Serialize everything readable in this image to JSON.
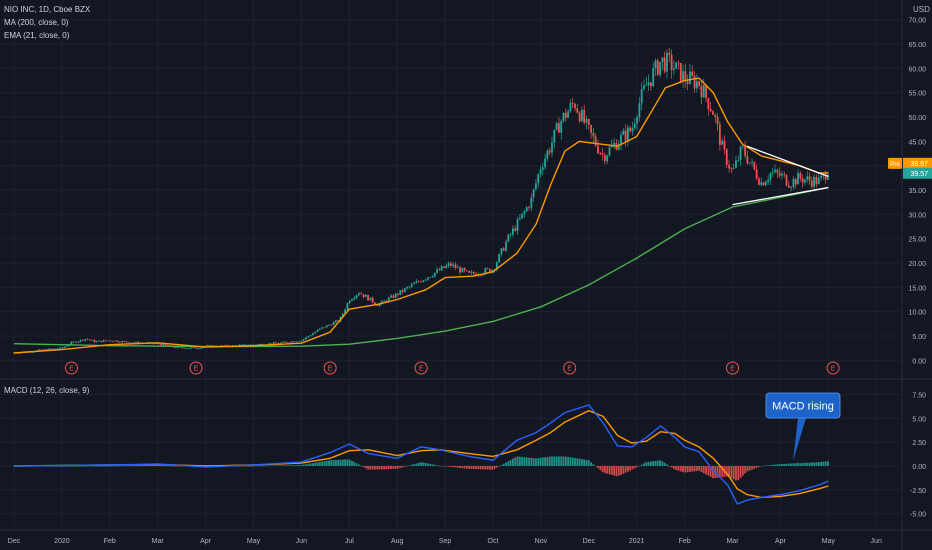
{
  "header": {
    "symbol": "NIO INC, 1D, Cboe BZX",
    "ma": "MA (200, close, 0)",
    "ema": "EMA (21, close, 0)",
    "macd": "MACD (12, 26, close, 9)",
    "currency": "USD"
  },
  "colors": {
    "background": "#131722",
    "grid": "#1e2230",
    "up": "#26a69a",
    "down": "#ef5350",
    "ema": "#ff9800",
    "ma200": "#4caf50",
    "macd": "#2962ff",
    "signal": "#ff9800",
    "trendline": "#ffffff",
    "callout": "#1e63c9"
  },
  "price_badges": {
    "pre_label": "Pre",
    "pre_value": "39.97",
    "last_value": "39.57"
  },
  "earnings_marker": "E",
  "annotation": "MACD rising",
  "chart_data": [
    {
      "type": "candlestick",
      "title": "NIO INC, 1D, Cboe BZX",
      "ylabel": "USD",
      "ylim": [
        -2,
        72
      ],
      "yticks": [
        "0.00",
        "5.00",
        "10.00",
        "15.00",
        "20.00",
        "25.00",
        "30.00",
        "35.00",
        "40.00",
        "45.00",
        "50.00",
        "55.00",
        "60.00",
        "65.00",
        "70.00"
      ],
      "x_categories": [
        "Dec",
        "2020",
        "Feb",
        "Mar",
        "Apr",
        "May",
        "Jun",
        "Jul",
        "Aug",
        "Sep",
        "Oct",
        "Nov",
        "Dec",
        "2021",
        "Feb",
        "Mar",
        "Apr",
        "May",
        "Jun"
      ],
      "x_ticks_month_index": [
        0,
        1,
        2,
        3,
        4,
        5,
        6,
        7,
        8,
        9,
        10,
        11,
        12,
        13,
        14,
        15,
        16,
        17,
        18
      ],
      "close_by_month_index": [
        [
          0,
          1.6
        ],
        [
          0.5,
          2.0
        ],
        [
          1,
          2.5
        ],
        [
          1.2,
          3.6
        ],
        [
          1.5,
          4.4
        ],
        [
          1.7,
          3.8
        ],
        [
          2,
          4.1
        ],
        [
          2.4,
          3.7
        ],
        [
          3,
          3.4
        ],
        [
          3.4,
          2.6
        ],
        [
          3.8,
          2.5
        ],
        [
          4,
          2.9
        ],
        [
          4.5,
          2.9
        ],
        [
          5,
          3.2
        ],
        [
          5.5,
          3.5
        ],
        [
          6,
          4.1
        ],
        [
          6.4,
          6.5
        ],
        [
          6.8,
          8.3
        ],
        [
          7,
          12.5
        ],
        [
          7.2,
          14.0
        ],
        [
          7.6,
          11.4
        ],
        [
          8,
          13.6
        ],
        [
          8.5,
          16.5
        ],
        [
          8.9,
          18.6
        ],
        [
          9.1,
          19.7
        ],
        [
          9.5,
          17.6
        ],
        [
          10,
          18.7
        ],
        [
          10.3,
          24.8
        ],
        [
          10.6,
          29.5
        ],
        [
          10.8,
          33.0
        ],
        [
          11,
          40.0
        ],
        [
          11.2,
          44.0
        ],
        [
          11.4,
          49.0
        ],
        [
          11.7,
          53.0
        ],
        [
          12,
          47.0
        ],
        [
          12.3,
          42.0
        ],
        [
          12.6,
          45.0
        ],
        [
          12.9,
          47.5
        ],
        [
          13,
          51.5
        ],
        [
          13.2,
          56.5
        ],
        [
          13.5,
          61.5
        ],
        [
          13.7,
          61.0
        ],
        [
          14,
          58.0
        ],
        [
          14.3,
          57.0
        ],
        [
          14.6,
          51.0
        ],
        [
          14.8,
          43.0
        ],
        [
          15,
          38.5
        ],
        [
          15.2,
          43.5
        ],
        [
          15.4,
          40.0
        ],
        [
          15.6,
          36.5
        ],
        [
          15.8,
          38.5
        ],
        [
          16,
          38.0
        ],
        [
          16.2,
          36.5
        ],
        [
          16.4,
          37.5
        ],
        [
          16.6,
          37.0
        ],
        [
          16.8,
          36.8
        ],
        [
          16.9,
          37.5
        ],
        [
          17.0,
          39.57
        ]
      ],
      "ema21_by_month_index": [
        [
          0,
          1.5
        ],
        [
          1,
          2.2
        ],
        [
          2,
          3.2
        ],
        [
          3,
          3.6
        ],
        [
          4,
          2.7
        ],
        [
          5,
          3.0
        ],
        [
          6,
          3.5
        ],
        [
          6.6,
          5.8
        ],
        [
          7,
          10.5
        ],
        [
          7.6,
          11.5
        ],
        [
          8,
          12.5
        ],
        [
          8.6,
          14.5
        ],
        [
          9,
          17.0
        ],
        [
          9.6,
          17.3
        ],
        [
          10,
          18.2
        ],
        [
          10.5,
          22.0
        ],
        [
          10.9,
          28.0
        ],
        [
          11.2,
          36.0
        ],
        [
          11.5,
          43.0
        ],
        [
          11.8,
          45.0
        ],
        [
          12.2,
          44.5
        ],
        [
          12.6,
          44.0
        ],
        [
          13,
          46.0
        ],
        [
          13.3,
          51.0
        ],
        [
          13.6,
          56.0
        ],
        [
          14,
          57.5
        ],
        [
          14.3,
          58.0
        ],
        [
          14.6,
          55.0
        ],
        [
          14.9,
          49.0
        ],
        [
          15.2,
          44.5
        ],
        [
          15.6,
          42.0
        ],
        [
          16,
          41.0
        ],
        [
          16.4,
          40.0
        ],
        [
          16.8,
          38.5
        ],
        [
          17.0,
          38.5
        ]
      ],
      "ma200_by_month_index": [
        [
          0,
          3.4
        ],
        [
          2,
          3.0
        ],
        [
          4,
          2.8
        ],
        [
          6,
          2.9
        ],
        [
          7,
          3.3
        ],
        [
          8,
          4.5
        ],
        [
          9,
          6.0
        ],
        [
          10,
          8.0
        ],
        [
          11,
          11.0
        ],
        [
          12,
          15.5
        ],
        [
          13,
          21.0
        ],
        [
          14,
          27.0
        ],
        [
          15,
          31.5
        ],
        [
          16,
          33.5
        ],
        [
          17,
          35.5
        ]
      ],
      "trendlines": [
        {
          "from": [
            15,
            32.0
          ],
          "to": [
            17,
            35.5
          ]
        },
        {
          "from": [
            15.3,
            44.0
          ],
          "to": [
            17,
            37.8
          ]
        }
      ],
      "earnings_markers_month_index": [
        1.2,
        3.8,
        6.6,
        8.5,
        11.6,
        15.0,
        17.1
      ]
    },
    {
      "type": "line",
      "title": "MACD (12, 26, close, 9)",
      "ylim": [
        -6.2,
        8.5
      ],
      "yticks": [
        "-5.00",
        "-2.50",
        "0.00",
        "2.50",
        "5.00",
        "7.50"
      ],
      "series": [
        {
          "name": "MACD",
          "values_by_month_index": [
            [
              0,
              0
            ],
            [
              2,
              0.1
            ],
            [
              3,
              0.2
            ],
            [
              4,
              -0.1
            ],
            [
              5,
              0.1
            ],
            [
              6,
              0.4
            ],
            [
              6.6,
              1.4
            ],
            [
              7,
              2.3
            ],
            [
              7.4,
              1.3
            ],
            [
              8,
              0.8
            ],
            [
              8.5,
              2.0
            ],
            [
              8.9,
              1.7
            ],
            [
              9.5,
              1.0
            ],
            [
              10,
              0.6
            ],
            [
              10.5,
              2.7
            ],
            [
              10.9,
              3.5
            ],
            [
              11.2,
              4.5
            ],
            [
              11.5,
              5.6
            ],
            [
              12,
              6.4
            ],
            [
              12.3,
              4.5
            ],
            [
              12.6,
              2.1
            ],
            [
              12.9,
              2.0
            ],
            [
              13.2,
              3.0
            ],
            [
              13.5,
              4.2
            ],
            [
              13.8,
              3.0
            ],
            [
              14,
              2.0
            ],
            [
              14.3,
              1.5
            ],
            [
              14.6,
              -0.5
            ],
            [
              14.9,
              -2.0
            ],
            [
              15.1,
              -4.0
            ],
            [
              15.3,
              -3.6
            ],
            [
              15.6,
              -3.3
            ],
            [
              16,
              -3.0
            ],
            [
              16.4,
              -2.6
            ],
            [
              16.8,
              -2.0
            ],
            [
              17,
              -1.6
            ]
          ]
        },
        {
          "name": "Signal",
          "values_by_month_index": [
            [
              0,
              0
            ],
            [
              2,
              0.1
            ],
            [
              3,
              0.15
            ],
            [
              4,
              0
            ],
            [
              5,
              0.1
            ],
            [
              6,
              0.3
            ],
            [
              6.6,
              0.8
            ],
            [
              7,
              1.6
            ],
            [
              7.4,
              1.7
            ],
            [
              8,
              1.1
            ],
            [
              8.5,
              1.6
            ],
            [
              8.9,
              1.7
            ],
            [
              9.5,
              1.3
            ],
            [
              10,
              1.0
            ],
            [
              10.5,
              1.7
            ],
            [
              10.9,
              2.7
            ],
            [
              11.2,
              3.5
            ],
            [
              11.5,
              4.6
            ],
            [
              12,
              5.8
            ],
            [
              12.3,
              5.2
            ],
            [
              12.6,
              3.2
            ],
            [
              12.9,
              2.4
            ],
            [
              13.2,
              2.6
            ],
            [
              13.5,
              3.6
            ],
            [
              13.8,
              3.4
            ],
            [
              14,
              2.7
            ],
            [
              14.3,
              2.0
            ],
            [
              14.6,
              0.8
            ],
            [
              14.9,
              -0.9
            ],
            [
              15.1,
              -2.4
            ],
            [
              15.3,
              -3.0
            ],
            [
              15.6,
              -3.3
            ],
            [
              16,
              -3.2
            ],
            [
              16.4,
              -2.9
            ],
            [
              16.8,
              -2.4
            ],
            [
              17,
              -2.1
            ]
          ]
        }
      ]
    }
  ]
}
